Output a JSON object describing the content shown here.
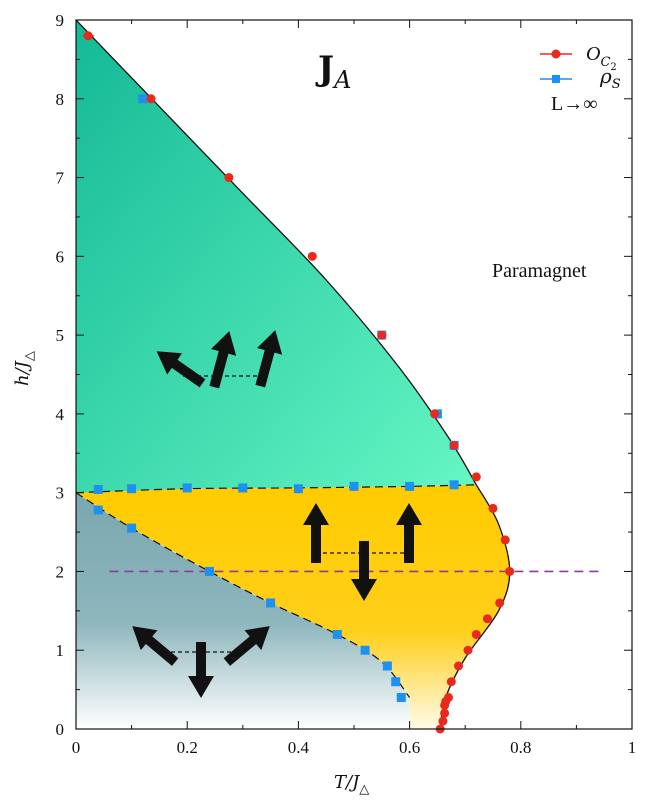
{
  "chart_data": {
    "type": "scatter",
    "title": "J_A",
    "title_main": "J",
    "title_sub": "A",
    "xlabel_main": "T/J",
    "xlabel_sub": "△",
    "ylabel_main": "h/J",
    "ylabel_sub": "△",
    "xlim": [
      0,
      1
    ],
    "ylim": [
      0,
      9
    ],
    "xticks": [
      0,
      0.2,
      0.4,
      0.6,
      0.8,
      1
    ],
    "xtick_labels": [
      "0",
      "0.2",
      "0.4",
      "0.6",
      "0.8",
      "1"
    ],
    "yticks": [
      0,
      1,
      2,
      3,
      4,
      5,
      6,
      7,
      8,
      9
    ],
    "ytick_labels": [
      "0",
      "1",
      "2",
      "3",
      "4",
      "5",
      "6",
      "7",
      "8",
      "9"
    ],
    "grid": false,
    "legend_position": "top-right",
    "legend_note": "L→∞",
    "annotation": "Paramagnet",
    "dashed_line_h": 2.0,
    "dashed_line_x_range": [
      0.06,
      0.95
    ],
    "series": [
      {
        "name_main": "O",
        "name_sub": "C",
        "name_subsub": "2",
        "marker": "circle",
        "color": "#e8291c",
        "x": [
          0.022,
          0.135,
          0.275,
          0.425,
          0.55,
          0.645,
          0.68,
          0.72,
          0.75,
          0.772,
          0.78,
          0.762,
          0.74,
          0.72,
          0.705,
          0.688,
          0.675,
          0.67,
          0.665,
          0.663,
          0.663,
          0.66,
          0.655
        ],
        "y": [
          8.8,
          8.0,
          7.0,
          6.0,
          5.0,
          4.0,
          3.6,
          3.2,
          2.8,
          2.4,
          2.0,
          1.6,
          1.4,
          1.2,
          1.0,
          0.8,
          0.6,
          0.4,
          0.35,
          0.3,
          0.2,
          0.1,
          0.0
        ]
      },
      {
        "name_main": "ρ",
        "name_sub": "S",
        "marker": "square",
        "color": "#1e90f0",
        "x": [
          0.12,
          0.55,
          0.65,
          0.68,
          0.04,
          0.1,
          0.2,
          0.3,
          0.4,
          0.5,
          0.6,
          0.68,
          0.04,
          0.1,
          0.24,
          0.35,
          0.47,
          0.52,
          0.56,
          0.575,
          0.585
        ],
        "y": [
          8.0,
          5.0,
          4.0,
          3.6,
          3.04,
          3.05,
          3.06,
          3.06,
          3.05,
          3.08,
          3.08,
          3.1,
          2.78,
          2.55,
          2.0,
          1.6,
          1.2,
          1.0,
          0.8,
          0.6,
          0.4
        ]
      }
    ],
    "phase_boundaries": {
      "upper": {
        "x": [
          0,
          0.15,
          0.3,
          0.45,
          0.58,
          0.67,
          0.72
        ],
        "y": [
          9.0,
          7.9,
          6.8,
          5.7,
          4.6,
          3.7,
          3.1
        ]
      },
      "middle_dashed": {
        "x": [
          0,
          0.2,
          0.4,
          0.6,
          0.72
        ],
        "y": [
          3.0,
          3.05,
          3.06,
          3.08,
          3.1
        ]
      },
      "lower_dashed": {
        "x": [
          0,
          0.1,
          0.24,
          0.35,
          0.47,
          0.55,
          0.6
        ],
        "y": [
          3.0,
          2.55,
          2.0,
          1.6,
          1.2,
          0.85,
          0.4
        ]
      },
      "right": {
        "x": [
          0.72,
          0.76,
          0.78,
          0.76,
          0.7,
          0.665,
          0.655
        ],
        "y": [
          3.1,
          2.6,
          2.0,
          1.5,
          0.9,
          0.4,
          0.0
        ]
      }
    },
    "colors": {
      "upper_phase": "#24c4a0",
      "upper_phase_light": "#5ef2c0",
      "middle_phase": "#ffcc00",
      "lower_phase": "#7fa9b2",
      "dashed_purple": "#8e3a9d"
    }
  }
}
